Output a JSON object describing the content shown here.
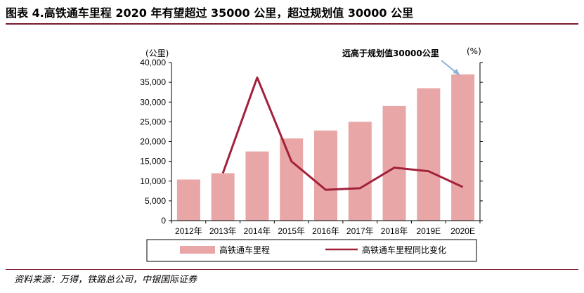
{
  "page": {
    "title": "图表 4.高铁通车里程 2020 年有望超过 35000 公里，超过规划值 30000 公里",
    "source": "资料来源：万得，铁路总公司，中银国际证券"
  },
  "chart_data": {
    "type": "bar",
    "categories": [
      "2012年",
      "2013年",
      "2014年",
      "2015年",
      "2016年",
      "2017年",
      "2018年",
      "2019E",
      "2020E"
    ],
    "series": [
      {
        "name": "高铁通车里程",
        "type": "bar",
        "axis": "left",
        "color": "#e8a7a6",
        "values": [
          10400,
          12000,
          17500,
          20800,
          22800,
          25000,
          29000,
          33500,
          37000
        ]
      },
      {
        "name": "高铁通车里程同比变化",
        "type": "line",
        "axis": "right",
        "color": "#a3203a",
        "values": [
          null,
          12000,
          36200,
          15000,
          7800,
          8200,
          13400,
          12500,
          8500
        ]
      }
    ],
    "left_axis": {
      "unit": "(公里)",
      "ylim": [
        0,
        40000
      ],
      "ticks": [
        "0",
        "5,000",
        "10,000",
        "15,000",
        "20,000",
        "25,000",
        "30,000",
        "35,000",
        "40,000"
      ]
    },
    "right_axis": {
      "unit": "(%)",
      "ylim": [
        0,
        40000
      ]
    },
    "annotation": {
      "text": "远高于规划值30000公里",
      "target": "2020E"
    },
    "legend": {
      "position": "bottom"
    },
    "grid": false
  }
}
